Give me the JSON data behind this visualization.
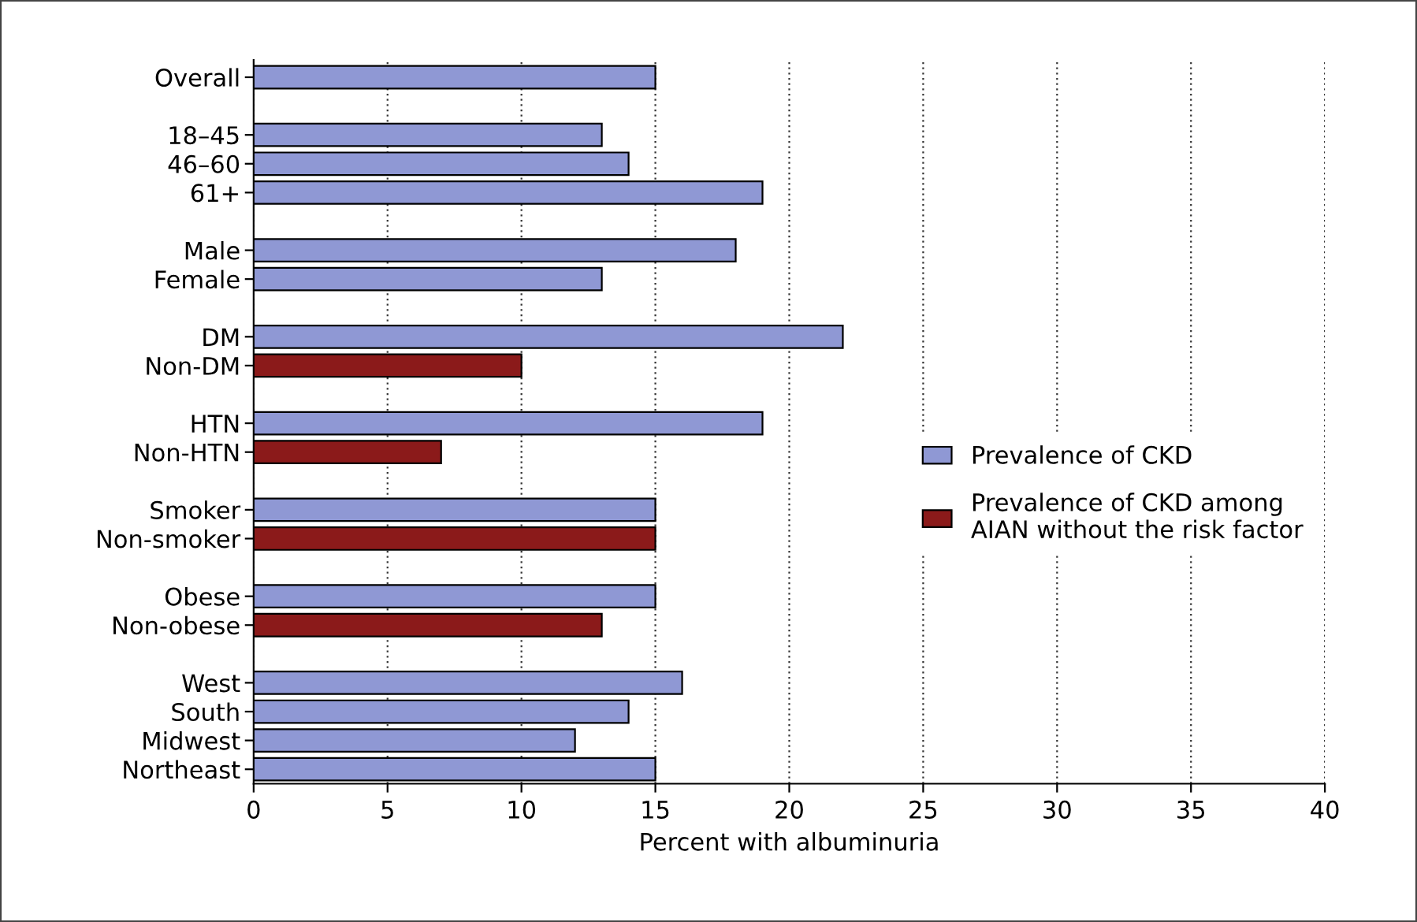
{
  "chart_data": {
    "type": "bar",
    "orientation": "horizontal",
    "xlabel": "Percent with albuminuria",
    "categories": [
      "Overall",
      null,
      "18–45",
      "46–60",
      "61+",
      null,
      "Male",
      "Female",
      null,
      "DM",
      "Non-DM",
      null,
      "HTN",
      "Non-HTN",
      null,
      "Smoker",
      "Non-smoker",
      null,
      "Obese",
      "Non-obese",
      null,
      "West",
      "South",
      "Midwest",
      "Northeast"
    ],
    "series": [
      {
        "name": "Prevalence of CKD",
        "color": "#8f98d4",
        "values": [
          15,
          null,
          13,
          14,
          19,
          null,
          18,
          13,
          null,
          22,
          null,
          null,
          19,
          null,
          null,
          15,
          null,
          null,
          15,
          null,
          null,
          16,
          14,
          12,
          15
        ]
      },
      {
        "name": "Prevalence of CKD among AIAN without the risk factor",
        "color": "#8b1a1a",
        "values": [
          null,
          null,
          null,
          null,
          null,
          null,
          null,
          null,
          null,
          null,
          10,
          null,
          null,
          7,
          null,
          null,
          15,
          null,
          null,
          13,
          null,
          null,
          null,
          null,
          null
        ]
      }
    ],
    "xlim": [
      0,
      40
    ],
    "xticks": [
      0,
      5,
      10,
      15,
      20,
      25,
      30,
      35,
      40
    ],
    "grid": "x",
    "legend": "center right"
  }
}
